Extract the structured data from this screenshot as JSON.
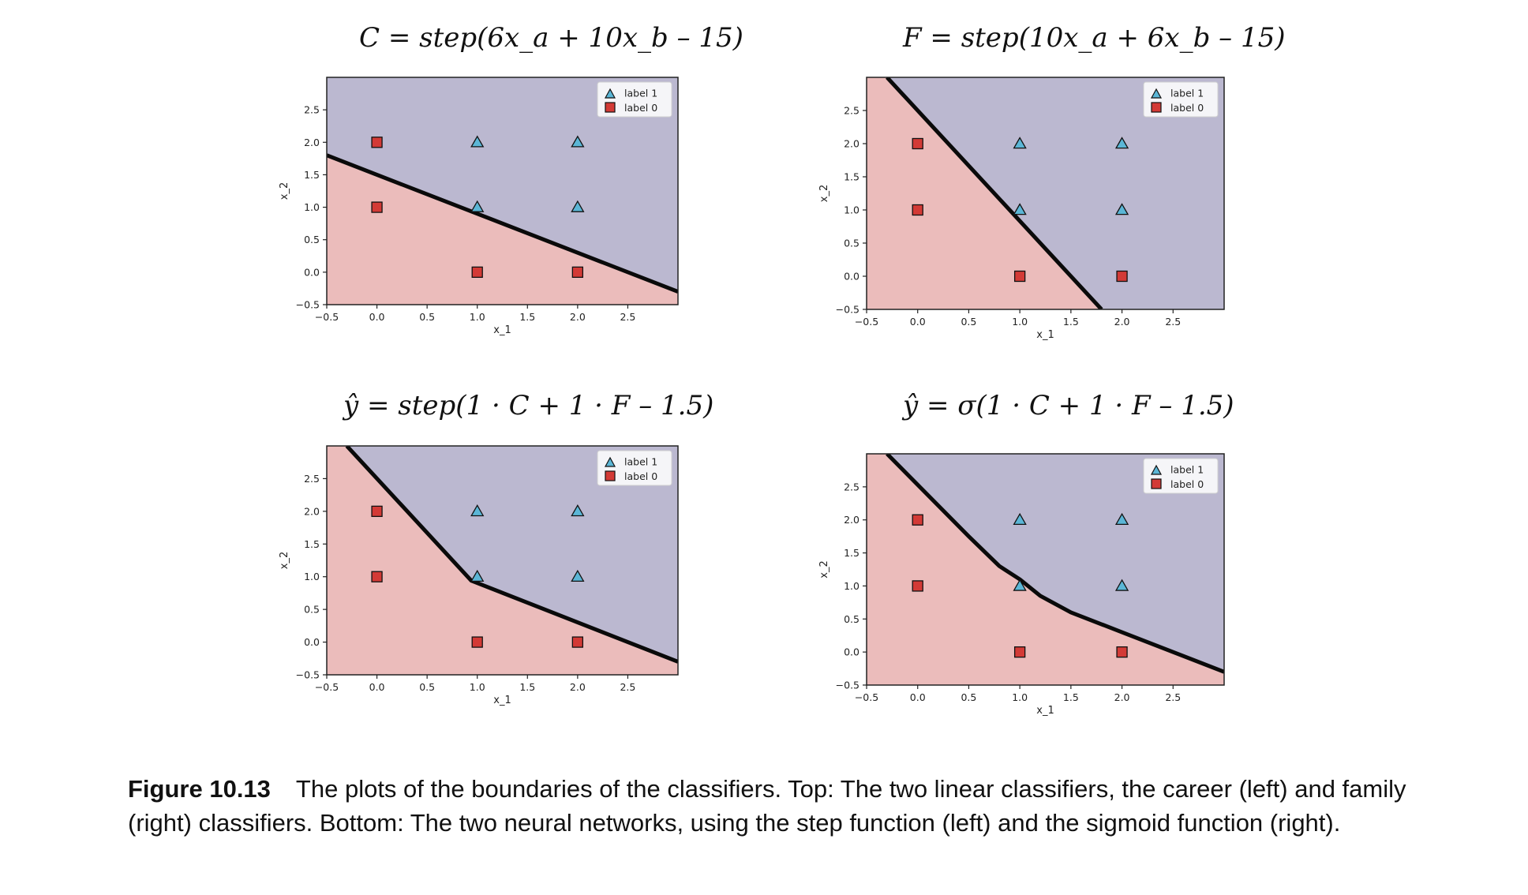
{
  "colors": {
    "region_label_1": "#bbb8d0",
    "region_label_0": "#ebbcbb",
    "marker_label_1": "#5bb6d6",
    "marker_label_0": "#d33a36",
    "boundary": "#0a0a0a"
  },
  "chart_data": [
    {
      "type": "scatter",
      "title": "C = step(6x_a + 10x_b – 15)",
      "xlabel": "x_1",
      "ylabel": "x_2",
      "xlim": [
        -0.5,
        3.0
      ],
      "ylim": [
        -0.5,
        3.0
      ],
      "xticks": [
        "−0.5",
        "0.0",
        "0.5",
        "1.0",
        "1.5",
        "2.0",
        "2.5"
      ],
      "yticks": [
        "−0.5",
        "0.0",
        "0.5",
        "1.0",
        "1.5",
        "2.0",
        "2.5"
      ],
      "legend": {
        "position": "top-right",
        "entries": [
          "label 1",
          "label 0"
        ]
      },
      "boundary": "linear",
      "boundary_points": [
        [
          -0.5,
          1.8
        ],
        [
          3.0,
          -0.3
        ]
      ],
      "series": [
        {
          "name": "label 1",
          "marker": "triangle",
          "points": [
            [
              1,
              2
            ],
            [
              2,
              2
            ],
            [
              1,
              1
            ],
            [
              2,
              1
            ]
          ]
        },
        {
          "name": "label 0",
          "marker": "square",
          "points": [
            [
              0,
              2
            ],
            [
              0,
              1
            ],
            [
              1,
              0
            ],
            [
              2,
              0
            ]
          ]
        }
      ]
    },
    {
      "type": "scatter",
      "title": "F = step(10x_a + 6x_b – 15)",
      "xlabel": "x_1",
      "ylabel": "x_2",
      "xlim": [
        -0.5,
        3.0
      ],
      "ylim": [
        -0.5,
        3.0
      ],
      "xticks": [
        "−0.5",
        "0.0",
        "0.5",
        "1.0",
        "1.5",
        "2.0",
        "2.5"
      ],
      "yticks": [
        "−0.5",
        "0.0",
        "0.5",
        "1.0",
        "1.5",
        "2.0",
        "2.5"
      ],
      "legend": {
        "position": "top-right",
        "entries": [
          "label 1",
          "label 0"
        ]
      },
      "boundary": "linear",
      "boundary_points": [
        [
          -0.3,
          3.0
        ],
        [
          1.8,
          -0.5
        ]
      ],
      "series": [
        {
          "name": "label 1",
          "marker": "triangle",
          "points": [
            [
              1,
              2
            ],
            [
              2,
              2
            ],
            [
              1,
              1
            ],
            [
              2,
              1
            ]
          ]
        },
        {
          "name": "label 0",
          "marker": "square",
          "points": [
            [
              0,
              2
            ],
            [
              0,
              1
            ],
            [
              1,
              0
            ],
            [
              2,
              0
            ]
          ]
        }
      ]
    },
    {
      "type": "scatter",
      "title": "ŷ = step(1 · C + 1 · F – 1.5)",
      "xlabel": "x_1",
      "ylabel": "x_2",
      "xlim": [
        -0.5,
        3.0
      ],
      "ylim": [
        -0.5,
        3.0
      ],
      "xticks": [
        "−0.5",
        "0.0",
        "0.5",
        "1.0",
        "1.5",
        "2.0",
        "2.5"
      ],
      "yticks": [
        "−0.5",
        "0.0",
        "0.5",
        "1.0",
        "1.5",
        "2.0",
        "2.5"
      ],
      "legend": {
        "position": "top-right",
        "entries": [
          "label 1",
          "label 0"
        ]
      },
      "boundary": "piecewise-linear",
      "boundary_points": [
        [
          -0.3,
          3.0
        ],
        [
          0.94,
          0.94
        ],
        [
          3.0,
          -0.3
        ]
      ],
      "series": [
        {
          "name": "label 1",
          "marker": "triangle",
          "points": [
            [
              1,
              2
            ],
            [
              2,
              2
            ],
            [
              1,
              1
            ],
            [
              2,
              1
            ]
          ]
        },
        {
          "name": "label 0",
          "marker": "square",
          "points": [
            [
              0,
              2
            ],
            [
              0,
              1
            ],
            [
              1,
              0
            ],
            [
              2,
              0
            ]
          ]
        }
      ]
    },
    {
      "type": "scatter",
      "title": "ŷ = σ(1 · C + 1 · F – 1.5)",
      "xlabel": "x_1",
      "ylabel": "x_2",
      "xlim": [
        -0.5,
        3.0
      ],
      "ylim": [
        -0.5,
        3.0
      ],
      "xticks": [
        "−0.5",
        "0.0",
        "0.5",
        "1.0",
        "1.5",
        "2.0",
        "2.5"
      ],
      "yticks": [
        "−0.5",
        "0.0",
        "0.5",
        "1.0",
        "1.5",
        "2.0",
        "2.5"
      ],
      "legend": {
        "position": "top-right",
        "entries": [
          "label 1",
          "label 0"
        ]
      },
      "boundary": "smooth",
      "boundary_points": [
        [
          -0.3,
          3.0
        ],
        [
          0.5,
          1.75
        ],
        [
          0.8,
          1.3
        ],
        [
          1.0,
          1.1
        ],
        [
          1.2,
          0.85
        ],
        [
          1.5,
          0.6
        ],
        [
          2.0,
          0.3
        ],
        [
          3.0,
          -0.3
        ]
      ],
      "series": [
        {
          "name": "label 1",
          "marker": "triangle",
          "points": [
            [
              1,
              2
            ],
            [
              2,
              2
            ],
            [
              1,
              1
            ],
            [
              2,
              1
            ]
          ]
        },
        {
          "name": "label 0",
          "marker": "square",
          "points": [
            [
              0,
              2
            ],
            [
              0,
              1
            ],
            [
              1,
              0
            ],
            [
              2,
              0
            ]
          ]
        }
      ]
    }
  ],
  "caption": {
    "label": "Figure 10.13",
    "text": "The plots of the boundaries of the classifiers. Top: The two linear classifiers, the career (left) and family (right) classifiers. Bottom: The two neural networks, using the step function (left) and the sigmoid function (right)."
  }
}
